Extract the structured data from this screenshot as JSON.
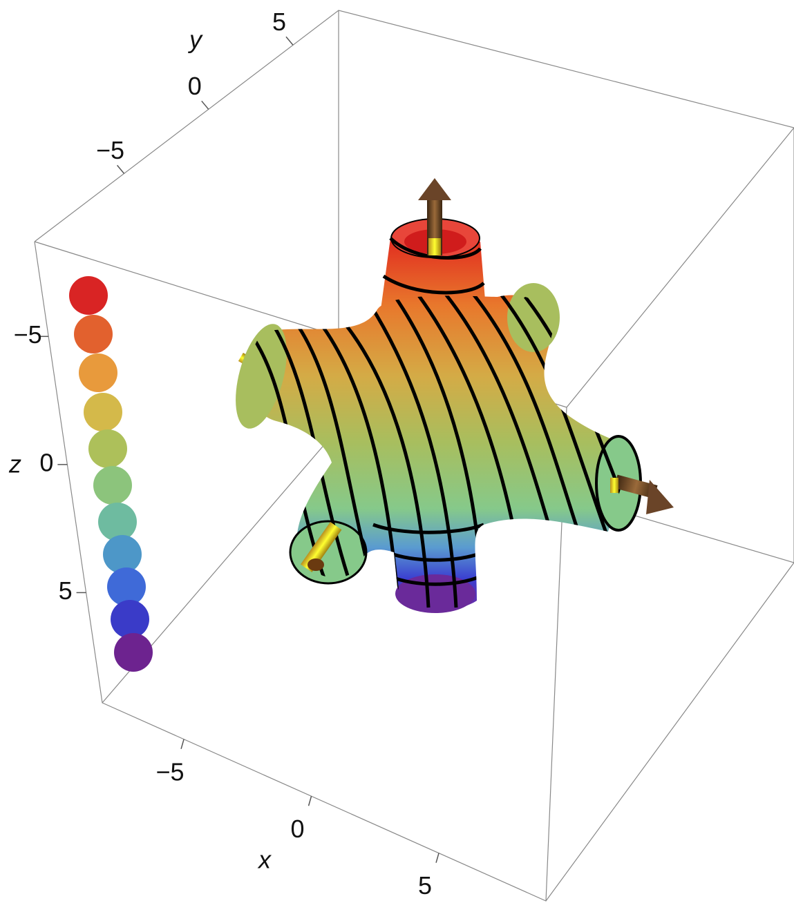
{
  "chart_data": {
    "type": "surface3d",
    "xlabel": "x",
    "ylabel": "y",
    "zlabel": "z",
    "xlim": [
      -8.2,
      9.2
    ],
    "xticks": [
      {
        "value": -5,
        "label": "−5"
      },
      0,
      5
    ],
    "ylim": [
      -10.3,
      7.7
    ],
    "yticks": [
      {
        "value": -5,
        "label": "−5"
      },
      0,
      5
    ],
    "zlim": [
      -8.7,
      9.3
    ],
    "zticks": [
      {
        "value": -5,
        "label": "−5"
      },
      0,
      5
    ]
  }
}
